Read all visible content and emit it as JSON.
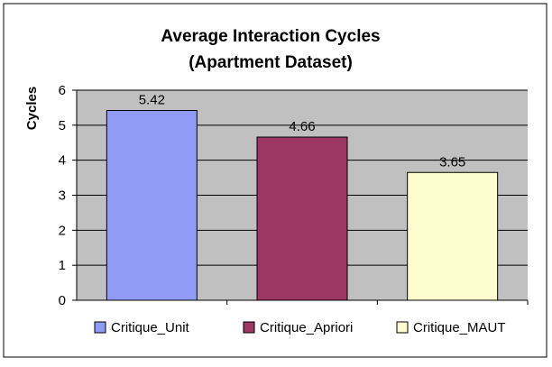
{
  "chart_data": {
    "type": "bar",
    "title": [
      "Average Interaction Cycles",
      "(Apartment Dataset)"
    ],
    "xlabel": "",
    "ylabel": "Cycles",
    "ylim": [
      0,
      6
    ],
    "yticks": [
      0,
      1,
      2,
      3,
      4,
      5,
      6
    ],
    "grid": true,
    "legend_position": "bottom",
    "categories": [
      "Critique_Unit",
      "Critique_Apriori",
      "Critique_MAUT"
    ],
    "values": [
      5.42,
      4.66,
      3.65
    ],
    "data_labels": [
      "5.42",
      "4.66",
      "3.65"
    ],
    "colors": [
      "#8f9bf5",
      "#9c3763",
      "#fdfdcf"
    ],
    "plot_background": "#c0c0c0",
    "border_color": "#000000"
  }
}
